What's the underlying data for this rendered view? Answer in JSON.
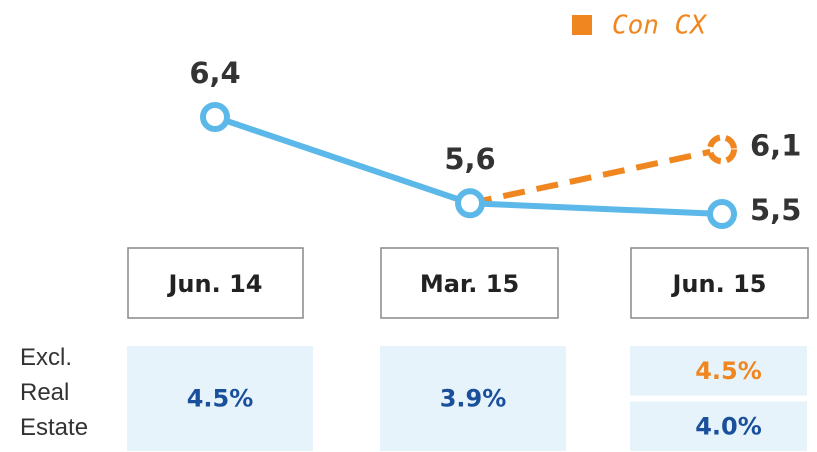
{
  "chart_data": {
    "type": "line",
    "categories": [
      "Jun. 14",
      "Mar. 15",
      "Jun. 15"
    ],
    "series": [
      {
        "color": "#5bb8e8",
        "values": [
          6.4,
          5.6,
          5.5
        ],
        "value_labels": [
          "6,4",
          "5,6",
          "5,5"
        ],
        "dashed": false
      },
      {
        "name": "Con CX",
        "color": "#f0861f",
        "values": [
          null,
          5.6,
          6.1
        ],
        "value_labels": [
          null,
          null,
          "6,1"
        ],
        "dashed": true
      }
    ],
    "table": {
      "label": "Excl. Real Estate",
      "rows": [
        {
          "color": "#f0861f",
          "values": [
            null,
            null,
            "4.5%"
          ]
        },
        {
          "color": "#1a4f9c",
          "values": [
            "4.5%",
            "3.9%",
            "4.0%"
          ]
        }
      ]
    }
  }
}
